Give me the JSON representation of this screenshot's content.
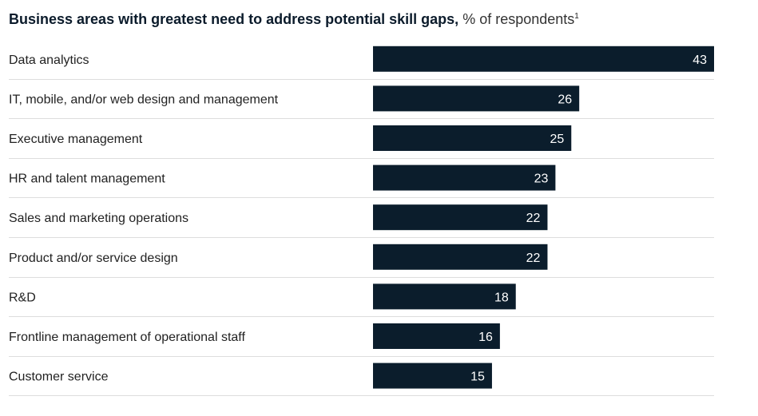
{
  "chart_data": {
    "type": "bar",
    "orientation": "horizontal",
    "title": "Business areas with greatest need to address potential skill gaps,",
    "subtitle": "% of respondents",
    "footnote_marker": "1",
    "categories": [
      "Data analytics",
      "IT, mobile, and/or web design and management",
      "Executive management",
      "HR and talent management",
      "Sales and marketing operations",
      "Product and/or service design",
      "R&D",
      "Frontline management of operational staff",
      "Customer service"
    ],
    "values": [
      43,
      26,
      25,
      23,
      22,
      22,
      18,
      16,
      15
    ],
    "xlim": [
      0,
      43
    ],
    "grid": false,
    "legend": "none",
    "colors": {
      "bar": "#0b1d2c",
      "value_label": "#ffffff",
      "separator": "#dddddd"
    }
  }
}
